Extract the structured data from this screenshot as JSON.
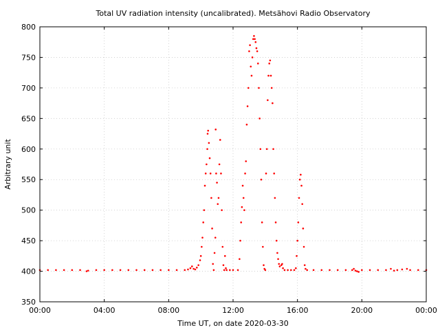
{
  "chart_data": {
    "type": "scatter",
    "title": "Total UV radiation intensity (uncalibrated). Metsähovi Radio Observatory",
    "xlabel": "Time UT, on date 2020-03-30",
    "ylabel": "Arbitrary unit",
    "xlim": [
      0,
      24
    ],
    "ylim": [
      350,
      800
    ],
    "x_ticks": [
      0,
      4,
      8,
      12,
      16,
      20,
      24
    ],
    "x_tick_labels": [
      "00:00",
      "04:00",
      "08:00",
      "12:00",
      "16:00",
      "20:00",
      "00:00"
    ],
    "y_ticks": [
      350,
      400,
      450,
      500,
      550,
      600,
      650,
      700,
      750,
      800
    ],
    "y_tick_labels": [
      "350",
      "400",
      "450",
      "500",
      "550",
      "600",
      "650",
      "700",
      "750",
      "800"
    ],
    "grid": true,
    "marker_color": "#ff0000",
    "series": [
      {
        "points": [
          [
            0.0,
            402
          ],
          [
            0.5,
            402
          ],
          [
            1.0,
            402
          ],
          [
            1.5,
            402
          ],
          [
            2.0,
            402
          ],
          [
            2.5,
            402
          ],
          [
            2.9,
            400
          ],
          [
            3.0,
            401
          ],
          [
            3.5,
            402
          ],
          [
            4.0,
            402
          ],
          [
            4.5,
            402
          ],
          [
            5.0,
            402
          ],
          [
            5.5,
            402
          ],
          [
            6.0,
            402
          ],
          [
            6.5,
            402
          ],
          [
            7.0,
            402
          ],
          [
            7.5,
            402
          ],
          [
            8.0,
            402
          ],
          [
            8.5,
            402
          ],
          [
            9.0,
            402
          ],
          [
            9.2,
            403
          ],
          [
            9.35,
            405
          ],
          [
            9.45,
            408
          ],
          [
            9.55,
            404
          ],
          [
            9.65,
            403
          ],
          [
            9.75,
            406
          ],
          [
            9.85,
            410
          ],
          [
            9.95,
            418
          ],
          [
            10.0,
            425
          ],
          [
            10.05,
            440
          ],
          [
            10.1,
            455
          ],
          [
            10.15,
            480
          ],
          [
            10.2,
            500
          ],
          [
            10.25,
            540
          ],
          [
            10.3,
            560
          ],
          [
            10.35,
            575
          ],
          [
            10.4,
            600
          ],
          [
            10.42,
            625
          ],
          [
            10.45,
            630
          ],
          [
            10.5,
            610
          ],
          [
            10.55,
            585
          ],
          [
            10.6,
            560
          ],
          [
            10.65,
            520
          ],
          [
            10.7,
            470
          ],
          [
            10.75,
            412
          ],
          [
            10.8,
            402
          ],
          [
            10.85,
            430
          ],
          [
            10.9,
            455
          ],
          [
            10.92,
            632
          ],
          [
            10.95,
            560
          ],
          [
            11.0,
            545
          ],
          [
            11.05,
            510
          ],
          [
            11.1,
            520
          ],
          [
            11.15,
            575
          ],
          [
            11.2,
            615
          ],
          [
            11.25,
            560
          ],
          [
            11.3,
            500
          ],
          [
            11.35,
            440
          ],
          [
            11.4,
            410
          ],
          [
            11.45,
            402
          ],
          [
            11.5,
            425
          ],
          [
            11.55,
            405
          ],
          [
            11.6,
            402
          ],
          [
            11.8,
            402
          ],
          [
            12.0,
            402
          ],
          [
            12.3,
            402
          ],
          [
            12.4,
            420
          ],
          [
            12.45,
            450
          ],
          [
            12.5,
            480
          ],
          [
            12.55,
            505
          ],
          [
            12.6,
            540
          ],
          [
            12.65,
            520
          ],
          [
            12.7,
            500
          ],
          [
            12.75,
            560
          ],
          [
            12.8,
            580
          ],
          [
            12.85,
            640
          ],
          [
            12.9,
            670
          ],
          [
            12.95,
            700
          ],
          [
            13.0,
            760
          ],
          [
            13.05,
            770
          ],
          [
            13.1,
            735
          ],
          [
            13.15,
            720
          ],
          [
            13.2,
            750
          ],
          [
            13.25,
            780
          ],
          [
            13.3,
            785
          ],
          [
            13.35,
            780
          ],
          [
            13.4,
            775
          ],
          [
            13.45,
            765
          ],
          [
            13.5,
            760
          ],
          [
            13.55,
            740
          ],
          [
            13.6,
            700
          ],
          [
            13.65,
            650
          ],
          [
            13.7,
            600
          ],
          [
            13.75,
            550
          ],
          [
            13.8,
            480
          ],
          [
            13.85,
            440
          ],
          [
            13.9,
            410
          ],
          [
            13.95,
            404
          ],
          [
            14.0,
            402
          ],
          [
            14.05,
            560
          ],
          [
            14.1,
            600
          ],
          [
            14.15,
            680
          ],
          [
            14.2,
            720
          ],
          [
            14.25,
            740
          ],
          [
            14.3,
            745
          ],
          [
            14.35,
            720
          ],
          [
            14.4,
            700
          ],
          [
            14.45,
            675
          ],
          [
            14.5,
            600
          ],
          [
            14.55,
            560
          ],
          [
            14.6,
            520
          ],
          [
            14.65,
            480
          ],
          [
            14.7,
            450
          ],
          [
            14.75,
            430
          ],
          [
            14.8,
            420
          ],
          [
            14.85,
            412
          ],
          [
            14.9,
            408
          ],
          [
            15.0,
            410
          ],
          [
            15.05,
            412
          ],
          [
            15.1,
            405
          ],
          [
            15.2,
            402
          ],
          [
            15.4,
            402
          ],
          [
            15.6,
            402
          ],
          [
            15.8,
            402
          ],
          [
            15.9,
            405
          ],
          [
            15.95,
            425
          ],
          [
            16.0,
            450
          ],
          [
            16.05,
            480
          ],
          [
            16.1,
            520
          ],
          [
            16.15,
            550
          ],
          [
            16.2,
            558
          ],
          [
            16.25,
            540
          ],
          [
            16.3,
            510
          ],
          [
            16.35,
            470
          ],
          [
            16.4,
            440
          ],
          [
            16.45,
            410
          ],
          [
            16.5,
            404
          ],
          [
            16.6,
            402
          ],
          [
            17.0,
            402
          ],
          [
            17.5,
            402
          ],
          [
            18.0,
            402
          ],
          [
            18.5,
            402
          ],
          [
            19.0,
            402
          ],
          [
            19.4,
            402
          ],
          [
            19.5,
            404
          ],
          [
            19.6,
            401
          ],
          [
            19.7,
            400
          ],
          [
            19.8,
            399
          ],
          [
            20.0,
            402
          ],
          [
            20.5,
            402
          ],
          [
            21.0,
            402
          ],
          [
            21.5,
            402
          ],
          [
            21.8,
            404
          ],
          [
            22.0,
            401
          ],
          [
            22.2,
            402
          ],
          [
            22.5,
            403
          ],
          [
            22.8,
            404
          ],
          [
            23.0,
            402
          ],
          [
            23.5,
            402
          ],
          [
            24.0,
            402
          ]
        ]
      }
    ]
  }
}
